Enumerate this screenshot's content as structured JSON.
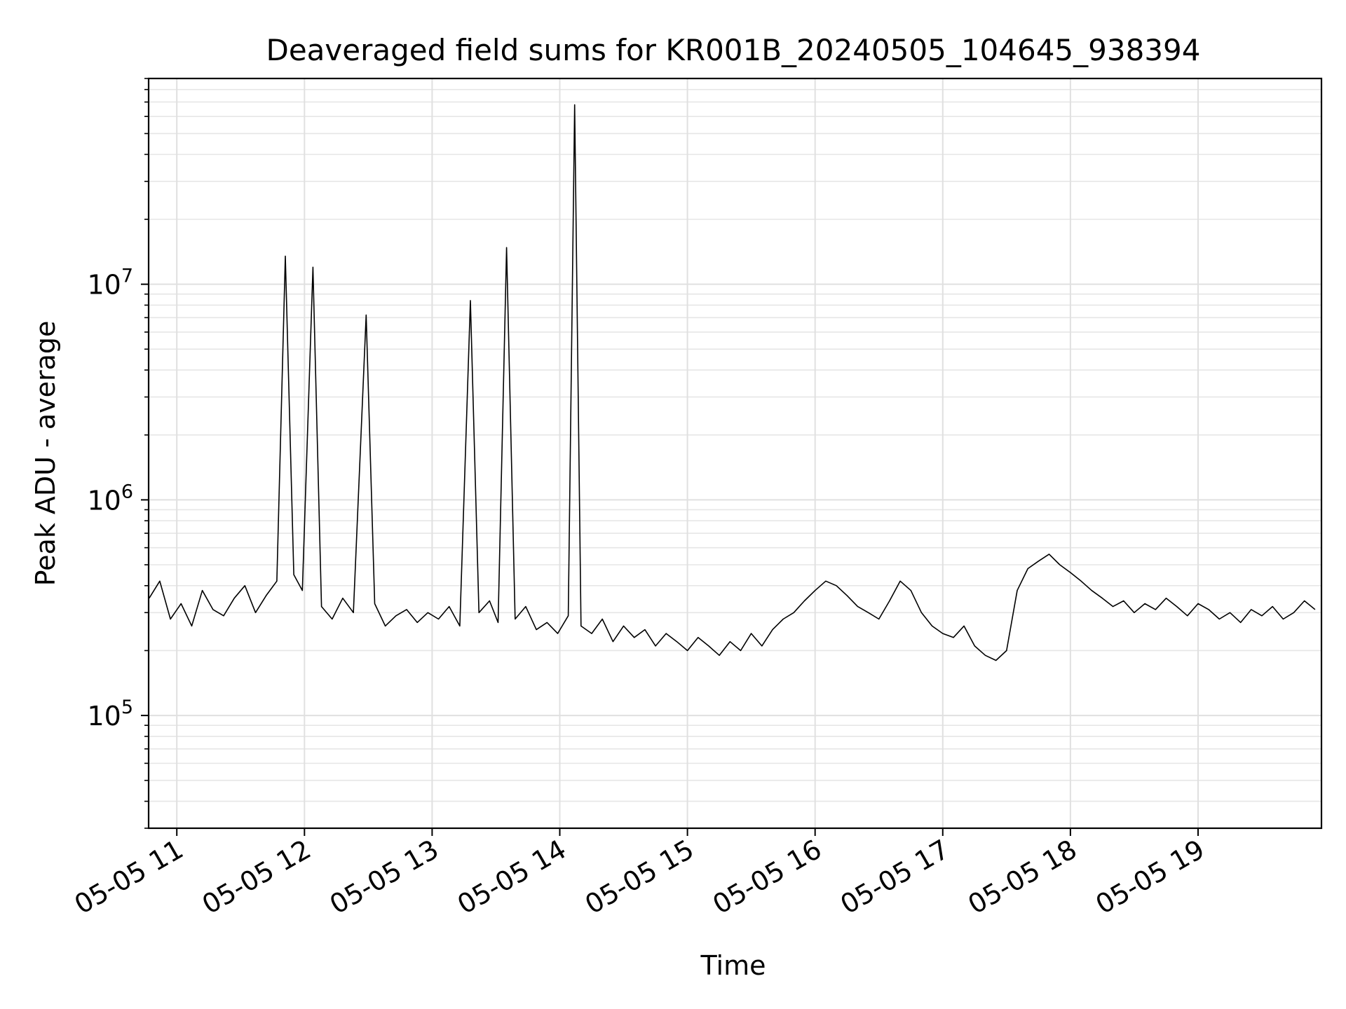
{
  "chart_data": {
    "type": "line",
    "title": "Deaveraged field sums for KR001B_20240505_104645_938394",
    "xlabel": "Time",
    "ylabel": "Peak ADU - average",
    "x_range": [
      "2024-05-05T10:46:45",
      "2024-05-05T19:58:00"
    ],
    "y_scale": "log",
    "ylim": [
      30000,
      90000000
    ],
    "y_ticks": [
      {
        "value": 100000,
        "base": "10",
        "exp": "5"
      },
      {
        "value": 1000000,
        "base": "10",
        "exp": "6"
      },
      {
        "value": 10000000,
        "base": "10",
        "exp": "7"
      }
    ],
    "x_ticks": [
      {
        "time": "2024-05-05T11:00:00",
        "label": "05-05 11"
      },
      {
        "time": "2024-05-05T12:00:00",
        "label": "05-05 12"
      },
      {
        "time": "2024-05-05T13:00:00",
        "label": "05-05 13"
      },
      {
        "time": "2024-05-05T14:00:00",
        "label": "05-05 14"
      },
      {
        "time": "2024-05-05T15:00:00",
        "label": "05-05 15"
      },
      {
        "time": "2024-05-05T16:00:00",
        "label": "05-05 16"
      },
      {
        "time": "2024-05-05T17:00:00",
        "label": "05-05 17"
      },
      {
        "time": "2024-05-05T18:00:00",
        "label": "05-05 18"
      },
      {
        "time": "2024-05-05T19:00:00",
        "label": "05-05 19"
      }
    ],
    "grid": true,
    "line_color": "#000000",
    "series": [
      {
        "values": [
          [
            "2024-05-05T10:47:00",
            350000
          ],
          [
            "2024-05-05T10:52:00",
            420000
          ],
          [
            "2024-05-05T10:57:00",
            280000
          ],
          [
            "2024-05-05T11:02:00",
            330000
          ],
          [
            "2024-05-05T11:07:00",
            260000
          ],
          [
            "2024-05-05T11:12:00",
            380000
          ],
          [
            "2024-05-05T11:17:00",
            310000
          ],
          [
            "2024-05-05T11:22:00",
            290000
          ],
          [
            "2024-05-05T11:27:00",
            350000
          ],
          [
            "2024-05-05T11:32:00",
            400000
          ],
          [
            "2024-05-05T11:37:00",
            300000
          ],
          [
            "2024-05-05T11:42:00",
            360000
          ],
          [
            "2024-05-05T11:47:00",
            420000
          ],
          [
            "2024-05-05T11:51:00",
            13500000
          ],
          [
            "2024-05-05T11:55:00",
            450000
          ],
          [
            "2024-05-05T11:59:00",
            380000
          ],
          [
            "2024-05-05T12:04:00",
            12000000
          ],
          [
            "2024-05-05T12:08:00",
            320000
          ],
          [
            "2024-05-05T12:13:00",
            280000
          ],
          [
            "2024-05-05T12:18:00",
            350000
          ],
          [
            "2024-05-05T12:23:00",
            300000
          ],
          [
            "2024-05-05T12:29:00",
            7200000
          ],
          [
            "2024-05-05T12:33:00",
            330000
          ],
          [
            "2024-05-05T12:38:00",
            260000
          ],
          [
            "2024-05-05T12:43:00",
            290000
          ],
          [
            "2024-05-05T12:48:00",
            310000
          ],
          [
            "2024-05-05T12:53:00",
            270000
          ],
          [
            "2024-05-05T12:58:00",
            300000
          ],
          [
            "2024-05-05T13:03:00",
            280000
          ],
          [
            "2024-05-05T13:08:00",
            320000
          ],
          [
            "2024-05-05T13:13:00",
            260000
          ],
          [
            "2024-05-05T13:18:00",
            8400000
          ],
          [
            "2024-05-05T13:22:00",
            300000
          ],
          [
            "2024-05-05T13:27:00",
            340000
          ],
          [
            "2024-05-05T13:31:00",
            270000
          ],
          [
            "2024-05-05T13:35:00",
            14800000
          ],
          [
            "2024-05-05T13:39:00",
            280000
          ],
          [
            "2024-05-05T13:44:00",
            320000
          ],
          [
            "2024-05-05T13:49:00",
            250000
          ],
          [
            "2024-05-05T13:54:00",
            270000
          ],
          [
            "2024-05-05T13:59:00",
            240000
          ],
          [
            "2024-05-05T14:04:00",
            290000
          ],
          [
            "2024-05-05T14:07:00",
            68000000
          ],
          [
            "2024-05-05T14:10:00",
            260000
          ],
          [
            "2024-05-05T14:15:00",
            240000
          ],
          [
            "2024-05-05T14:20:00",
            280000
          ],
          [
            "2024-05-05T14:25:00",
            220000
          ],
          [
            "2024-05-05T14:30:00",
            260000
          ],
          [
            "2024-05-05T14:35:00",
            230000
          ],
          [
            "2024-05-05T14:40:00",
            250000
          ],
          [
            "2024-05-05T14:45:00",
            210000
          ],
          [
            "2024-05-05T14:50:00",
            240000
          ],
          [
            "2024-05-05T14:55:00",
            220000
          ],
          [
            "2024-05-05T15:00:00",
            200000
          ],
          [
            "2024-05-05T15:05:00",
            230000
          ],
          [
            "2024-05-05T15:10:00",
            210000
          ],
          [
            "2024-05-05T15:15:00",
            190000
          ],
          [
            "2024-05-05T15:20:00",
            220000
          ],
          [
            "2024-05-05T15:25:00",
            200000
          ],
          [
            "2024-05-05T15:30:00",
            240000
          ],
          [
            "2024-05-05T15:35:00",
            210000
          ],
          [
            "2024-05-05T15:40:00",
            250000
          ],
          [
            "2024-05-05T15:45:00",
            280000
          ],
          [
            "2024-05-05T15:50:00",
            300000
          ],
          [
            "2024-05-05T15:55:00",
            340000
          ],
          [
            "2024-05-05T16:00:00",
            380000
          ],
          [
            "2024-05-05T16:05:00",
            420000
          ],
          [
            "2024-05-05T16:10:00",
            400000
          ],
          [
            "2024-05-05T16:15:00",
            360000
          ],
          [
            "2024-05-05T16:20:00",
            320000
          ],
          [
            "2024-05-05T16:25:00",
            300000
          ],
          [
            "2024-05-05T16:30:00",
            280000
          ],
          [
            "2024-05-05T16:35:00",
            340000
          ],
          [
            "2024-05-05T16:40:00",
            420000
          ],
          [
            "2024-05-05T16:45:00",
            380000
          ],
          [
            "2024-05-05T16:50:00",
            300000
          ],
          [
            "2024-05-05T16:55:00",
            260000
          ],
          [
            "2024-05-05T17:00:00",
            240000
          ],
          [
            "2024-05-05T17:05:00",
            230000
          ],
          [
            "2024-05-05T17:10:00",
            260000
          ],
          [
            "2024-05-05T17:15:00",
            210000
          ],
          [
            "2024-05-05T17:20:00",
            190000
          ],
          [
            "2024-05-05T17:25:00",
            180000
          ],
          [
            "2024-05-05T17:30:00",
            200000
          ],
          [
            "2024-05-05T17:35:00",
            380000
          ],
          [
            "2024-05-05T17:40:00",
            480000
          ],
          [
            "2024-05-05T17:45:00",
            520000
          ],
          [
            "2024-05-05T17:50:00",
            560000
          ],
          [
            "2024-05-05T17:55:00",
            500000
          ],
          [
            "2024-05-05T18:00:00",
            460000
          ],
          [
            "2024-05-05T18:05:00",
            420000
          ],
          [
            "2024-05-05T18:10:00",
            380000
          ],
          [
            "2024-05-05T18:15:00",
            350000
          ],
          [
            "2024-05-05T18:20:00",
            320000
          ],
          [
            "2024-05-05T18:25:00",
            340000
          ],
          [
            "2024-05-05T18:30:00",
            300000
          ],
          [
            "2024-05-05T18:35:00",
            330000
          ],
          [
            "2024-05-05T18:40:00",
            310000
          ],
          [
            "2024-05-05T18:45:00",
            350000
          ],
          [
            "2024-05-05T18:50:00",
            320000
          ],
          [
            "2024-05-05T18:55:00",
            290000
          ],
          [
            "2024-05-05T19:00:00",
            330000
          ],
          [
            "2024-05-05T19:05:00",
            310000
          ],
          [
            "2024-05-05T19:10:00",
            280000
          ],
          [
            "2024-05-05T19:15:00",
            300000
          ],
          [
            "2024-05-05T19:20:00",
            270000
          ],
          [
            "2024-05-05T19:25:00",
            310000
          ],
          [
            "2024-05-05T19:30:00",
            290000
          ],
          [
            "2024-05-05T19:35:00",
            320000
          ],
          [
            "2024-05-05T19:40:00",
            280000
          ],
          [
            "2024-05-05T19:45:00",
            300000
          ],
          [
            "2024-05-05T19:50:00",
            340000
          ],
          [
            "2024-05-05T19:55:00",
            310000
          ]
        ]
      }
    ]
  }
}
